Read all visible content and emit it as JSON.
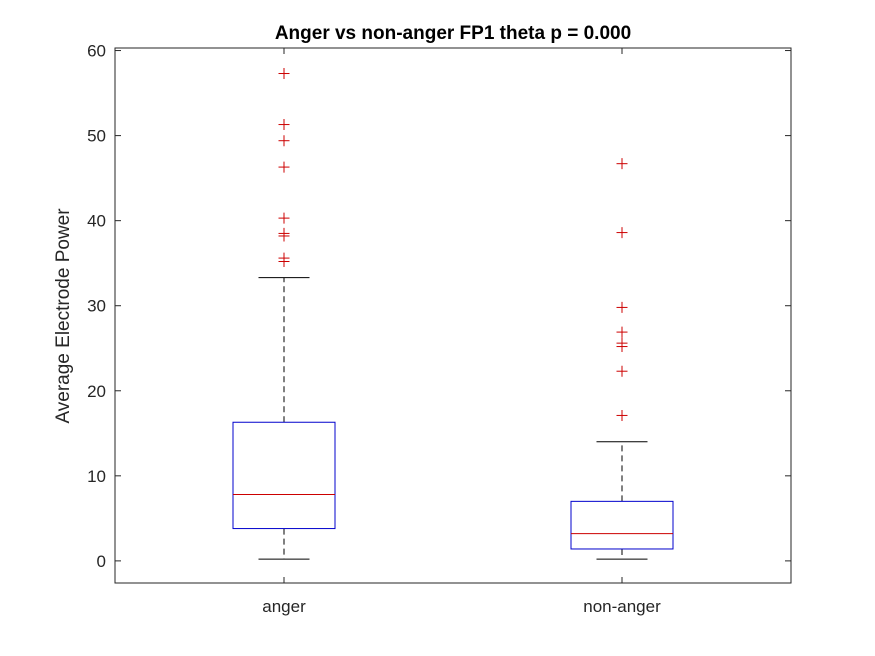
{
  "chart_data": {
    "type": "boxplot",
    "title": "Anger vs non-anger FP1 theta p = 0.000",
    "xlabel": "",
    "ylabel": "Average Electrode Power",
    "categories": [
      "anger",
      "non-anger"
    ],
    "ylim": [
      -2.6,
      60.3
    ],
    "yticks": [
      0,
      10,
      20,
      30,
      40,
      50,
      60
    ],
    "ytick_labels": [
      "0",
      "10",
      "20",
      "30",
      "40",
      "50",
      "60"
    ],
    "grid": false,
    "legend": "none",
    "boxes": [
      {
        "category": "anger",
        "whisker_low": 0.2,
        "q1": 3.8,
        "median": 7.8,
        "q3": 16.3,
        "whisker_high": 33.3,
        "outliers": [
          35.2,
          35.6,
          38.2,
          38.5,
          40.3,
          46.3,
          49.4,
          51.3,
          57.3
        ]
      },
      {
        "category": "non-anger",
        "whisker_low": 0.2,
        "q1": 1.4,
        "median": 3.2,
        "q3": 7.0,
        "whisker_high": 14.0,
        "outliers": [
          17.1,
          22.3,
          25.2,
          25.6,
          26.9,
          29.8,
          38.6,
          46.7
        ]
      }
    ],
    "colors": {
      "box": "#0000cc",
      "median": "#cc0000",
      "whisker": "#000000",
      "outlier": "#cc0000",
      "axes": "#262626"
    }
  }
}
